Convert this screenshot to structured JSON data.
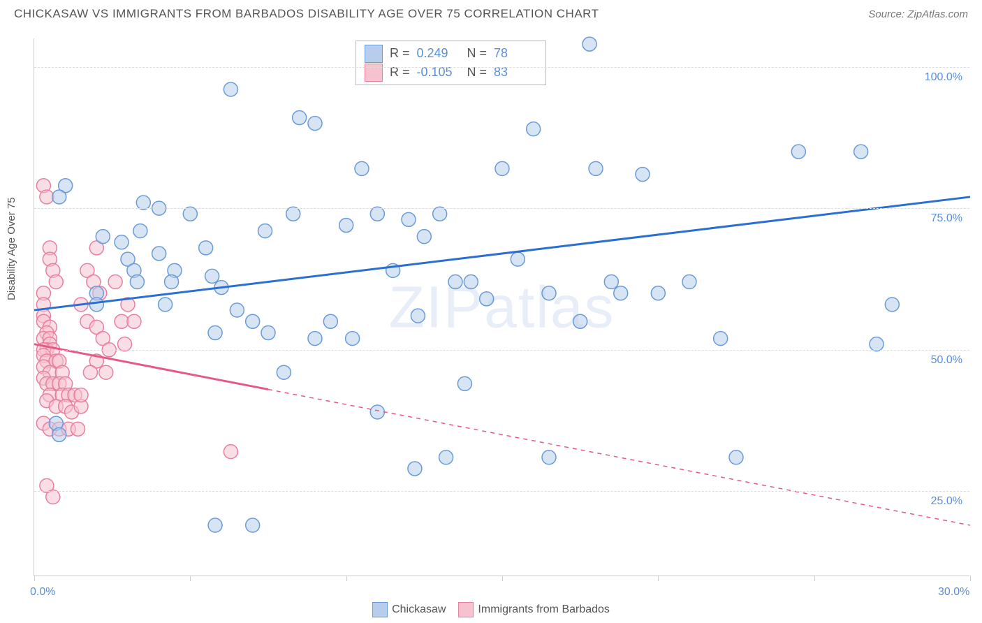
{
  "header": {
    "title": "CHICKASAW VS IMMIGRANTS FROM BARBADOS DISABILITY AGE OVER 75 CORRELATION CHART",
    "source_prefix": "Source: ",
    "source_name": "ZipAtlas.com"
  },
  "y_axis_label": "Disability Age Over 75",
  "watermark": {
    "zip": "ZIP",
    "atlas": "atlas"
  },
  "chart": {
    "type": "scatter",
    "xlim": [
      0,
      30
    ],
    "ylim": [
      10,
      105
    ],
    "x_ticks": [
      0,
      5,
      10,
      15,
      20,
      25,
      30
    ],
    "x_tick_labels": {
      "0": "0.0%",
      "30": "30.0%"
    },
    "y_gridlines": [
      25,
      50,
      75,
      100
    ],
    "y_tick_labels": {
      "25": "25.0%",
      "50": "50.0%",
      "75": "75.0%",
      "100": "100.0%"
    },
    "background_color": "#ffffff",
    "grid_color": "#dddddd",
    "axis_color": "#cccccc",
    "axis_label_color": "#5b8fd6",
    "marker_radius": 10,
    "marker_opacity": 0.55,
    "line_width": 3
  },
  "series": [
    {
      "name": "Chickasaw",
      "color_fill": "#b7cdeb",
      "color_stroke": "#6a9bd8",
      "swatch_fill": "#b7cdeb",
      "swatch_border": "#6a9bd8",
      "trend": {
        "color": "#2b6fd1",
        "solid_from": [
          0,
          57
        ],
        "solid_to": [
          30,
          77
        ],
        "style": "solid"
      },
      "stats": {
        "R": "0.249",
        "N": "78"
      },
      "points": [
        [
          1.0,
          79
        ],
        [
          0.8,
          77
        ],
        [
          3.5,
          76
        ],
        [
          4.0,
          75
        ],
        [
          6.3,
          96
        ],
        [
          8.3,
          74
        ],
        [
          8.5,
          91
        ],
        [
          9.0,
          90
        ],
        [
          10.0,
          72
        ],
        [
          10.5,
          82
        ],
        [
          11.0,
          74
        ],
        [
          12.0,
          73
        ],
        [
          12.5,
          70
        ],
        [
          13.0,
          74
        ],
        [
          15.0,
          82
        ],
        [
          14.0,
          62
        ],
        [
          16.0,
          89
        ],
        [
          17.8,
          104
        ],
        [
          18.0,
          82
        ],
        [
          18.5,
          62
        ],
        [
          24.5,
          85
        ],
        [
          26.5,
          85
        ],
        [
          2.8,
          69
        ],
        [
          3.0,
          66
        ],
        [
          3.2,
          64
        ],
        [
          3.3,
          62
        ],
        [
          2.0,
          60
        ],
        [
          2.0,
          58
        ],
        [
          2.2,
          70
        ],
        [
          3.4,
          71
        ],
        [
          4.0,
          67
        ],
        [
          4.5,
          64
        ],
        [
          4.4,
          62
        ],
        [
          4.2,
          58
        ],
        [
          5.0,
          74
        ],
        [
          5.5,
          68
        ],
        [
          5.7,
          63
        ],
        [
          6.0,
          61
        ],
        [
          5.8,
          53
        ],
        [
          6.5,
          57
        ],
        [
          7.0,
          55
        ],
        [
          7.4,
          71
        ],
        [
          7.5,
          53
        ],
        [
          8.0,
          46
        ],
        [
          9.5,
          55
        ],
        [
          9.0,
          52
        ],
        [
          10.2,
          52
        ],
        [
          11.5,
          64
        ],
        [
          12.3,
          56
        ],
        [
          13.5,
          62
        ],
        [
          13.8,
          44
        ],
        [
          14.5,
          59
        ],
        [
          15.5,
          66
        ],
        [
          16.5,
          60
        ],
        [
          17.5,
          55
        ],
        [
          18.8,
          60
        ],
        [
          19.5,
          81
        ],
        [
          20.0,
          60
        ],
        [
          21.0,
          62
        ],
        [
          22.0,
          52
        ],
        [
          27.5,
          58
        ],
        [
          27.0,
          51
        ],
        [
          5.8,
          19
        ],
        [
          7.0,
          19
        ],
        [
          11.0,
          39
        ],
        [
          12.2,
          29
        ],
        [
          13.2,
          31
        ],
        [
          16.5,
          31
        ],
        [
          22.5,
          31
        ],
        [
          0.7,
          37
        ],
        [
          0.8,
          35
        ]
      ]
    },
    {
      "name": "Immigrants from Barbados",
      "color_fill": "#f6c2d0",
      "color_stroke": "#e87fa0",
      "swatch_fill": "#f6c2d0",
      "swatch_border": "#e87fa0",
      "trend": {
        "color": "#e55a85",
        "solid_from": [
          0,
          51
        ],
        "solid_to": [
          7.5,
          43
        ],
        "dashed_to": [
          30,
          19
        ],
        "style": "solid-then-dashed"
      },
      "stats": {
        "R": "-0.105",
        "N": "83"
      },
      "points": [
        [
          0.3,
          79
        ],
        [
          0.4,
          77
        ],
        [
          0.5,
          68
        ],
        [
          0.5,
          66
        ],
        [
          0.6,
          64
        ],
        [
          0.7,
          62
        ],
        [
          0.3,
          60
        ],
        [
          0.3,
          58
        ],
        [
          0.3,
          56
        ],
        [
          0.3,
          55
        ],
        [
          0.5,
          54
        ],
        [
          0.4,
          53
        ],
        [
          0.3,
          52
        ],
        [
          0.5,
          52
        ],
        [
          0.5,
          51
        ],
        [
          0.4,
          50
        ],
        [
          0.3,
          50
        ],
        [
          0.6,
          50
        ],
        [
          0.3,
          49
        ],
        [
          0.4,
          48
        ],
        [
          0.7,
          48
        ],
        [
          0.8,
          48
        ],
        [
          0.3,
          47
        ],
        [
          0.5,
          46
        ],
        [
          0.9,
          46
        ],
        [
          0.3,
          45
        ],
        [
          0.4,
          44
        ],
        [
          0.6,
          44
        ],
        [
          0.8,
          44
        ],
        [
          1.0,
          44
        ],
        [
          0.5,
          42
        ],
        [
          0.9,
          42
        ],
        [
          1.1,
          42
        ],
        [
          1.3,
          42
        ],
        [
          0.4,
          41
        ],
        [
          0.7,
          40
        ],
        [
          1.0,
          40
        ],
        [
          1.2,
          39
        ],
        [
          1.5,
          40
        ],
        [
          0.3,
          37
        ],
        [
          0.5,
          36
        ],
        [
          0.8,
          36
        ],
        [
          1.1,
          36
        ],
        [
          1.4,
          36
        ],
        [
          0.4,
          26
        ],
        [
          0.6,
          24
        ],
        [
          1.7,
          64
        ],
        [
          1.9,
          62
        ],
        [
          2.0,
          68
        ],
        [
          2.1,
          60
        ],
        [
          1.5,
          58
        ],
        [
          1.7,
          55
        ],
        [
          2.0,
          54
        ],
        [
          2.2,
          52
        ],
        [
          2.4,
          50
        ],
        [
          2.0,
          48
        ],
        [
          1.8,
          46
        ],
        [
          2.3,
          46
        ],
        [
          1.5,
          42
        ],
        [
          2.6,
          62
        ],
        [
          2.8,
          55
        ],
        [
          2.9,
          51
        ],
        [
          3.0,
          58
        ],
        [
          3.2,
          55
        ],
        [
          6.3,
          32
        ]
      ]
    }
  ],
  "legend_bottom": {
    "items": [
      {
        "label": "Chickasaw",
        "swatch_fill": "#b7cdeb",
        "swatch_border": "#6a9bd8"
      },
      {
        "label": "Immigrants from Barbados",
        "swatch_fill": "#f6c2d0",
        "swatch_border": "#e87fa0"
      }
    ]
  },
  "stats_box": {
    "rows": [
      {
        "swatch_fill": "#b7cdeb",
        "swatch_border": "#6a9bd8",
        "R_label": "R =",
        "R": "0.249",
        "N_label": "N =",
        "N": "78"
      },
      {
        "swatch_fill": "#f6c2d0",
        "swatch_border": "#e87fa0",
        "R_label": "R =",
        "R": "-0.105",
        "N_label": "N =",
        "N": "83"
      }
    ]
  }
}
